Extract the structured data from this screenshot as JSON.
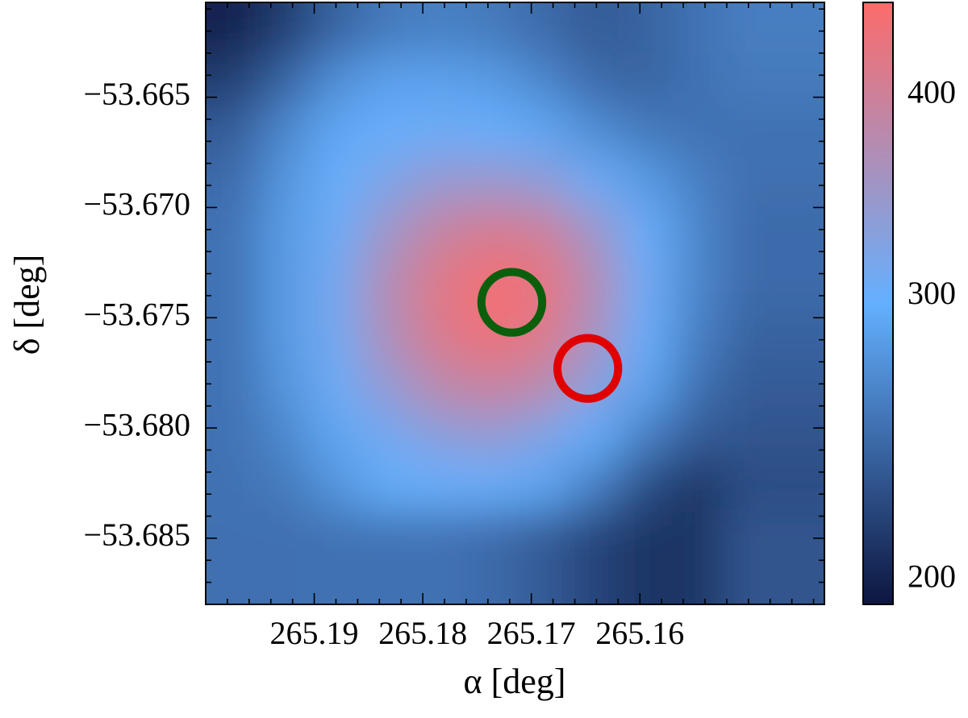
{
  "chart_data": {
    "type": "heatmap",
    "xlabel": "α [deg]",
    "ylabel": "δ [deg]",
    "x": [
      265.1975,
      265.19275,
      265.188,
      265.18325,
      265.1785,
      265.17375,
      265.169,
      265.16425,
      265.1595,
      265.15475,
      265.15,
      265.14525
    ],
    "y": [
      -53.6619,
      -53.6642,
      -53.6665,
      -53.6688,
      -53.6711,
      -53.6734,
      -53.6757,
      -53.678,
      -53.6803,
      -53.6826,
      -53.6849,
      -53.6872
    ],
    "z": [
      [
        200,
        215,
        240,
        255,
        260,
        255,
        245,
        235,
        240,
        250,
        255,
        258
      ],
      [
        215,
        240,
        270,
        285,
        285,
        280,
        265,
        245,
        240,
        250,
        255,
        255
      ],
      [
        235,
        265,
        290,
        300,
        305,
        300,
        290,
        270,
        255,
        250,
        250,
        250
      ],
      [
        245,
        275,
        300,
        320,
        340,
        345,
        335,
        305,
        280,
        260,
        250,
        248
      ],
      [
        250,
        280,
        305,
        350,
        390,
        410,
        400,
        350,
        300,
        265,
        250,
        245
      ],
      [
        250,
        280,
        310,
        370,
        420,
        445,
        430,
        370,
        305,
        265,
        248,
        245
      ],
      [
        250,
        280,
        310,
        365,
        415,
        440,
        420,
        360,
        300,
        260,
        245,
        240
      ],
      [
        250,
        275,
        305,
        340,
        380,
        395,
        380,
        330,
        290,
        250,
        235,
        235
      ],
      [
        250,
        265,
        290,
        310,
        330,
        340,
        320,
        295,
        260,
        235,
        225,
        230
      ],
      [
        250,
        255,
        275,
        295,
        300,
        300,
        290,
        260,
        225,
        210,
        215,
        225
      ],
      [
        250,
        250,
        255,
        265,
        270,
        265,
        250,
        225,
        205,
        200,
        210,
        225
      ],
      [
        248,
        248,
        250,
        250,
        250,
        245,
        235,
        220,
        210,
        210,
        220,
        230
      ]
    ],
    "xlim": [
      265.2,
      265.143
    ],
    "ylim": [
      -53.688,
      -53.6607
    ],
    "xticks": [
      265.19,
      265.18,
      265.17,
      265.16
    ],
    "xminorticks": [
      265.198,
      265.196,
      265.194,
      265.192,
      265.188,
      265.186,
      265.184,
      265.182,
      265.178,
      265.176,
      265.174,
      265.172,
      265.168,
      265.166,
      265.164,
      265.162,
      265.158,
      265.156,
      265.154,
      265.152,
      265.15,
      265.148,
      265.146,
      265.144
    ],
    "yticks": [
      {
        "value": -53.665,
        "label": "−53.665"
      },
      {
        "value": -53.67,
        "label": "−53.670"
      },
      {
        "value": -53.675,
        "label": "−53.675"
      },
      {
        "value": -53.68,
        "label": "−53.680"
      },
      {
        "value": -53.685,
        "label": "−53.685"
      }
    ],
    "yminorticks": [
      -53.661,
      -53.662,
      -53.663,
      -53.664,
      -53.666,
      -53.667,
      -53.668,
      -53.669,
      -53.671,
      -53.672,
      -53.673,
      -53.674,
      -53.676,
      -53.677,
      -53.678,
      -53.679,
      -53.681,
      -53.682,
      -53.683,
      -53.684,
      -53.686,
      -53.687
    ],
    "colormap": [
      "#0c1640",
      "#64b0ff",
      "#fc6b6b"
    ],
    "clim": [
      193,
      457
    ],
    "color_scale": "log",
    "cticks": [
      200,
      300,
      400
    ],
    "markers": [
      {
        "ra": 265.1718,
        "dec": -53.6743,
        "radius": 0.0028,
        "color": "#0b5e0b"
      },
      {
        "ra": 265.1648,
        "dec": -53.6773,
        "radius": 0.0028,
        "color": "#e00000"
      }
    ]
  }
}
